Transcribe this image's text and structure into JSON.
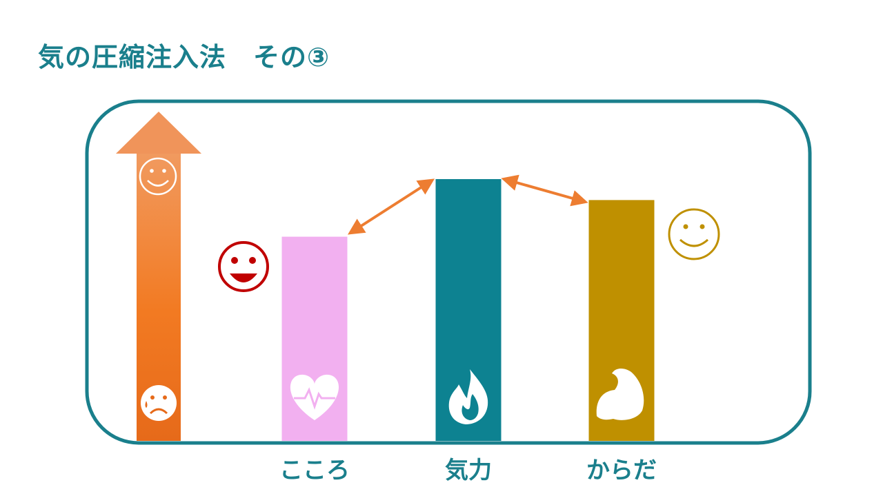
{
  "title": "気の圧縮注入法　その③",
  "bars": [
    {
      "label": "こころ",
      "level": 0.78,
      "color": "#f2b0f0",
      "icon": "heart-pulse-icon",
      "face": "grinning-face-icon",
      "face_color": "#c00000"
    },
    {
      "label": "気力",
      "level": 1.0,
      "color": "#0d8291",
      "icon": "flame-icon",
      "face": "",
      "face_color": ""
    },
    {
      "label": "からだ",
      "level": 0.92,
      "color": "#bf9000",
      "icon": "flexed-bicep-icon",
      "face": "smiling-face-icon",
      "face_color": "#bf9000"
    }
  ],
  "colors": {
    "frame": "#1a7f8c",
    "arrow_top": "#f19a5f",
    "arrow_mid": "#f27a22",
    "arrow_bottom": "#e66a1a",
    "connector": "#ed7d31"
  },
  "arrow": {
    "top_face": "smiling-face-icon",
    "bottom_face": "sad-face-icon"
  }
}
